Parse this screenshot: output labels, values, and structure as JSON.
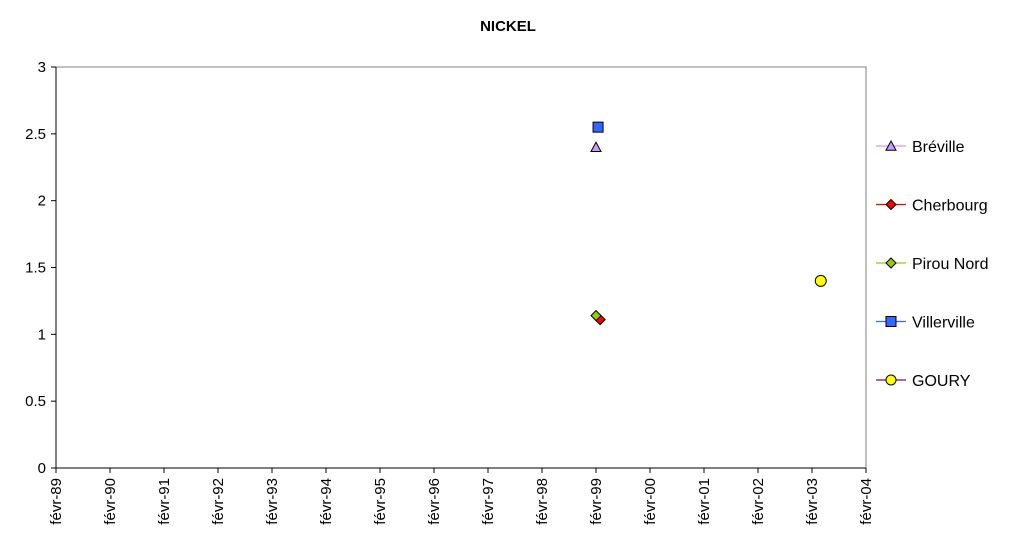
{
  "chart_data": {
    "type": "scatter",
    "title": "NICKEL",
    "xlabel": "",
    "ylabel": "",
    "ylim": [
      0,
      3
    ],
    "y_ticks": [
      "0",
      "0.5",
      "1",
      "1.5",
      "2",
      "2.5",
      "3"
    ],
    "x_ticks": [
      "févr-89",
      "févr-90",
      "févr-91",
      "févr-92",
      "févr-93",
      "févr-94",
      "févr-95",
      "févr-96",
      "févr-97",
      "févr-98",
      "févr-99",
      "févr-00",
      "févr-01",
      "févr-02",
      "févr-03",
      "févr-04"
    ],
    "xlim": [
      "1989-02-01",
      "2004-02-01"
    ],
    "grid": false,
    "legend_position": "right",
    "series": [
      {
        "name": "Bréville",
        "marker": "triangle",
        "fill": "#cc99ff",
        "line": "#cc99ff",
        "points": [
          {
            "x": "1999-02-01",
            "y": 2.4
          }
        ]
      },
      {
        "name": "Cherbourg",
        "marker": "diamond",
        "fill": "#ff0000",
        "line": "#ff0000",
        "points": [
          {
            "x": "1999-03-01",
            "y": 1.11
          }
        ]
      },
      {
        "name": "Pirou Nord",
        "marker": "diamond",
        "fill": "#99cc00",
        "line": "#99cc00",
        "points": [
          {
            "x": "1999-02-01",
            "y": 1.14
          }
        ]
      },
      {
        "name": "Villerville",
        "marker": "square",
        "fill": "#3366ff",
        "line": "#3366ff",
        "points": [
          {
            "x": "1999-02-15",
            "y": 2.55
          }
        ]
      },
      {
        "name": "GOURY",
        "marker": "circle",
        "fill": "#ffff00",
        "line": "#800080",
        "points": [
          {
            "x": "2003-04-01",
            "y": 1.4
          }
        ]
      }
    ]
  }
}
